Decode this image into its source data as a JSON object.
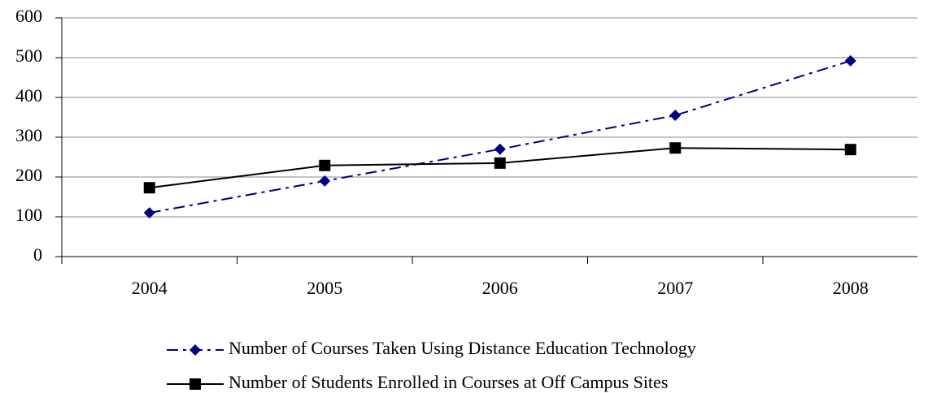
{
  "chart_data": {
    "type": "line",
    "categories": [
      "2004",
      "2005",
      "2006",
      "2007",
      "2008"
    ],
    "series": [
      {
        "name": "Number of Courses Taken Using Distance Education Technology",
        "color": "#000080",
        "marker": "diamond",
        "dash": "dash-dot",
        "values": [
          110,
          190,
          270,
          355,
          492
        ]
      },
      {
        "name": "Number of Students Enrolled in Courses at Off Campus Sites",
        "color": "#000000",
        "marker": "square",
        "dash": "solid",
        "values": [
          173,
          229,
          235,
          273,
          269
        ]
      }
    ],
    "ylim": [
      0,
      600
    ],
    "yticks": [
      0,
      100,
      200,
      300,
      400,
      500,
      600
    ],
    "grid": true,
    "legend": "bottom"
  }
}
